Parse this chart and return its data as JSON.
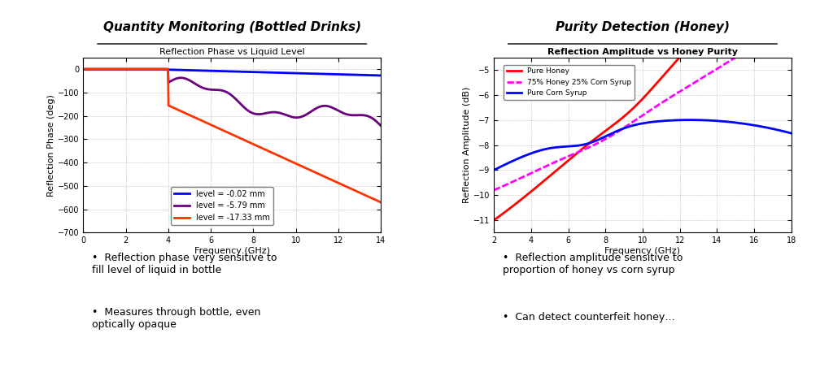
{
  "left_title": "Quantity Monitoring (Bottled Drinks)",
  "right_title": "Purity Detection (Honey)",
  "left_chart_title": "Reflection Phase vs Liquid Level",
  "right_chart_title": "Reflection Amplitude vs Honey Purity",
  "left_xlabel": "Frequency (GHz)",
  "left_ylabel": "Reflection Phase (deg)",
  "right_xlabel": "Frequency (GHz)",
  "right_ylabel": "Reflection Amplitude (dB)",
  "left_xlim": [
    0,
    14
  ],
  "left_ylim": [
    -700,
    50
  ],
  "right_xlim": [
    2,
    18
  ],
  "right_ylim": [
    -11.5,
    -4.5
  ],
  "left_xticks": [
    0,
    2,
    4,
    6,
    8,
    10,
    12,
    14
  ],
  "left_yticks": [
    0,
    -100,
    -200,
    -300,
    -400,
    -500,
    -600,
    -700
  ],
  "right_xticks": [
    2,
    4,
    6,
    8,
    10,
    12,
    14,
    16,
    18
  ],
  "right_yticks": [
    -5,
    -6,
    -7,
    -8,
    -9,
    -10,
    -11
  ],
  "left_bullet1": "Reflection phase very sensitive to\nfill level of liquid in bottle",
  "left_bullet2": "Measures through bottle, even\noptically opaque",
  "right_bullet1": "Reflection amplitude sensitive to\nproportion of honey vs corn syrup",
  "right_bullet2": "Can detect counterfeit honey…",
  "left_legend": [
    "level = -0.02 mm",
    "level = -5.79 mm",
    "level = -17.33 mm"
  ],
  "left_colors": [
    "#0000FF",
    "#6B0080",
    "#FF3300"
  ],
  "right_legend": [
    "Pure Honey",
    "75% Honey 25% Corn Syrup",
    "Pure Corn Syrup"
  ],
  "right_colors": [
    "#FF0000",
    "#FF00FF",
    "#0000FF"
  ],
  "bg_color": "#FFFFFF"
}
